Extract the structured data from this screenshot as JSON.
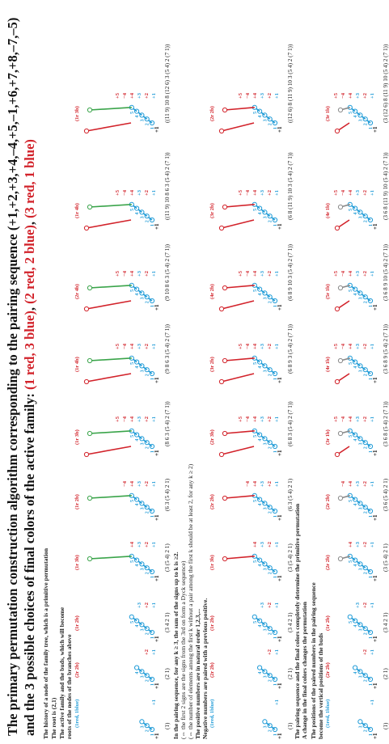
{
  "title": {
    "line1": "The primary permutation construction algorithm corresponding to the pairing sequence (+1,+2,+3,+4,–4,+5,–1,+6,+7,+8,–7,–5)",
    "line2_prefix": "and the 3 possible choices of final colors of the active family:",
    "choice1": "(1 red, 3 blue)",
    "choice2": "(2 red, 2 blue)",
    "choice3": "(3 red, 1 blue)"
  },
  "notes": {
    "n1": "The history of a node of the family tree, which is a primitive permutation",
    "n2": "The root is (2,1)",
    "n3a": "The active family and the buds, which will become",
    "n3b": "roots of the nodes of the branches above",
    "n4": "In the pairing sequence, for any k ≥ 3, the sum of the signs up to k is ≥2.",
    "n5": "(⇔ the first 2 signs are the signs from the 3rd on form a Dyck sequence)",
    "n6": "(⇔ the number of elements among the first k without a pair among the first k should be at least 2, for any k ≥ 2)",
    "n7": "The positive numbers are in natural order 1,2,3,...",
    "n8": "Negative numbers are paired with a previous positive.",
    "n9": "The pairing sequence and the final colors completely determine the primitive permutation",
    "n10": "A change in the final colors changes the permutation",
    "n11": "The positions of the paired numbers in the pairing sequence",
    "n12": "become the vertical positions of the buds"
  },
  "row1": {
    "labels": [
      "(1red, 1blue)",
      "(2r 2b)",
      "(1r 2b)",
      "(1r 3b)",
      "(1r 2b)",
      "(1r 3b)",
      "(1r 4b)",
      "(2r 4b)",
      "(1r 4b)",
      "(1r 3b)"
    ],
    "perms": [
      "(1)",
      "(2 1)",
      "(3 4 2 1)",
      "(3 (5 4) 2 1)",
      "(6 3 (5 4) 2 1)",
      "(8 6 3 (5 4) 2 (7 1))",
      "(9 8 6 3 (5 4) 2 (7 1))",
      "(9 10 8 6 3 (5 4) 2 (7 1))",
      "((11 9) 10 8 6 3 (5 4) 2 (7 1))",
      "((11 9) 10 8 (12 6) 3 (5 4) 2 (7 1))"
    ]
  },
  "row2": {
    "labels": [
      "(1red, 1blue)",
      "(2r 2b)",
      "(1r 2b)",
      "(1r 3b)",
      "(2r 2b)",
      "(2r 3b)",
      "(3r 2b)",
      "(4r 2b)",
      "(3r 2b)",
      "(2r 2b)"
    ],
    "perms": [
      "(1)",
      "(2 1)",
      "(3 4 2 1)",
      "(3 (5 4) 2 1)",
      "(6 3 (5 4) 2 1)",
      "(6 8 3 (5 4) 2 (7 1))",
      "(6 8 9 3 (5 4) 2 (7 1))",
      "(6 8 9 10 3 (5 4) 2 (7 1))",
      "(6 8 (11 9) 10 3 (5 4) 2 (7 1))",
      "((12 6) 8 (11 9) 10 3 (5 4) 2 (7 1))"
    ]
  },
  "row3": {
    "labels": [
      "(1red, 1blue)",
      "(2r 2b)",
      "(1r 2b)",
      "(2r 2b)",
      "(2r 2b)",
      "(3r 1b)",
      "(4r 1b)",
      "(5r 1b)",
      "(4r 1b)",
      "(3r 1b)"
    ],
    "perms": [
      "(1)",
      "(2 1)",
      "(3 4 2 1)",
      "(3 (5 4) 2 1)",
      "(3 6 (5 4) 2 1)",
      "(3 6 8 (5 4) 2 (7 1))",
      "(3 6 8 9 (5 4) 2 (7 1))",
      "(3 6 8 9 10 (5 4) 2 (7 1))",
      "(3 6 8 (11 9) 10 (5 4) 2 (7 1))",
      "(3 (12 6) 8 (11 9) 10 (5 4) 2 (7 1))"
    ]
  },
  "steps": [
    "+1",
    "+2",
    "+3",
    "+4",
    "−4",
    "+5",
    "−1",
    "+6",
    "+7",
    "+8",
    "−7",
    "−5"
  ],
  "colors": {
    "red": "#d2222a",
    "blue": "#1f9bd7",
    "green": "#3aa44a",
    "gray": "#8a8a8a",
    "black": "#111111"
  }
}
